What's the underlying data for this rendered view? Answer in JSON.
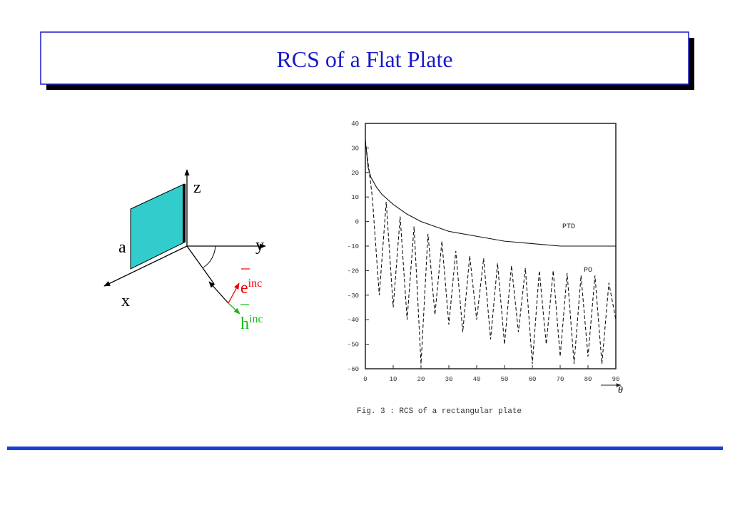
{
  "title": "RCS of a Flat Plate",
  "diagram": {
    "z": "z",
    "y": "y",
    "a": "a",
    "x": "x",
    "e_inc": {
      "base": "e",
      "sup": "inc"
    },
    "h_inc": {
      "base": "h",
      "sup": "inc"
    }
  },
  "chart_data": {
    "type": "line",
    "caption": "Fig. 3 : RCS of a rectangular plate",
    "x_label": "θ",
    "xlim": [
      0,
      90
    ],
    "xticks": [
      0,
      10,
      20,
      30,
      40,
      50,
      60,
      70,
      80,
      90
    ],
    "ylim": [
      -60,
      40
    ],
    "yticks": [
      -60,
      -50,
      -40,
      -30,
      -20,
      -10,
      0,
      10,
      20,
      30,
      40
    ],
    "series": [
      {
        "name": "PTD",
        "color": "#111111",
        "dashed": false,
        "x": [
          0,
          1,
          2,
          4,
          6,
          8,
          10,
          15,
          20,
          25,
          30,
          40,
          50,
          60,
          70,
          80,
          90
        ],
        "values": [
          33,
          22,
          18,
          14,
          11,
          9,
          7,
          3,
          0,
          -2,
          -4,
          -6,
          -8,
          -9,
          -10,
          -10,
          -10
        ]
      },
      {
        "name": "PO",
        "color": "#111111",
        "dashed": true,
        "x": [
          0,
          2.5,
          5,
          7.5,
          10,
          12.5,
          15,
          17.5,
          20,
          22.5,
          25,
          27.5,
          30,
          32.5,
          35,
          37.5,
          40,
          42.5,
          45,
          47.5,
          50,
          52.5,
          55,
          57.5,
          60,
          62.5,
          65,
          67.5,
          70,
          72.5,
          75,
          77.5,
          80,
          82.5,
          85,
          87.5,
          90
        ],
        "values": [
          33,
          10,
          -30,
          8,
          -35,
          2,
          -40,
          -2,
          -58,
          -5,
          -38,
          -8,
          -42,
          -12,
          -45,
          -14,
          -40,
          -15,
          -48,
          -17,
          -50,
          -18,
          -45,
          -19,
          -58,
          -20,
          -50,
          -20,
          -55,
          -21,
          -58,
          -22,
          -55,
          -22,
          -58,
          -25,
          -40
        ]
      }
    ]
  }
}
